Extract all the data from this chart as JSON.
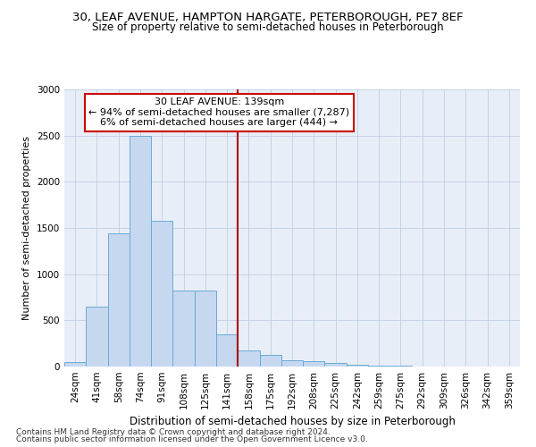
{
  "title_line1": "30, LEAF AVENUE, HAMPTON HARGATE, PETERBOROUGH, PE7 8EF",
  "title_line2": "Size of property relative to semi-detached houses in Peterborough",
  "xlabel": "Distribution of semi-detached houses by size in Peterborough",
  "ylabel": "Number of semi-detached properties",
  "footer_line1": "Contains HM Land Registry data © Crown copyright and database right 2024.",
  "footer_line2": "Contains public sector information licensed under the Open Government Licence v3.0.",
  "categories": [
    "24sqm",
    "41sqm",
    "58sqm",
    "74sqm",
    "91sqm",
    "108sqm",
    "125sqm",
    "141sqm",
    "158sqm",
    "175sqm",
    "192sqm",
    "208sqm",
    "225sqm",
    "242sqm",
    "259sqm",
    "275sqm",
    "292sqm",
    "309sqm",
    "326sqm",
    "342sqm",
    "359sqm"
  ],
  "values": [
    50,
    650,
    1440,
    2500,
    1580,
    820,
    820,
    350,
    170,
    125,
    70,
    55,
    40,
    20,
    8,
    8,
    4,
    4,
    4,
    4,
    4
  ],
  "bar_color": "#c5d8f0",
  "bar_edge_color": "#6aaad4",
  "vline_color": "#aa0000",
  "ylim": [
    0,
    3000
  ],
  "annotation_text_line1": "30 LEAF AVENUE: 139sqm",
  "annotation_text_line2": "← 94% of semi-detached houses are smaller (7,287)",
  "annotation_text_line3": "6% of semi-detached houses are larger (444) →",
  "annotation_box_facecolor": "#ffffff",
  "annotation_box_edgecolor": "#cc0000",
  "title1_fontsize": 9.5,
  "title2_fontsize": 8.5,
  "xlabel_fontsize": 8.5,
  "ylabel_fontsize": 8,
  "tick_fontsize": 7.5,
  "annotation_fontsize": 8,
  "footer_fontsize": 6.5,
  "background_color": "#e8eef8"
}
